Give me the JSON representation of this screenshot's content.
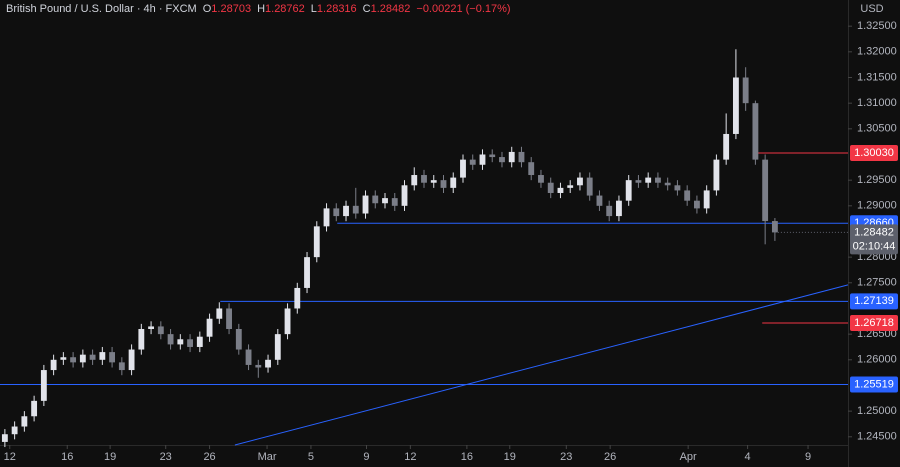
{
  "header": {
    "symbol": "British Pound / U.S. Dollar · 4h · FXCM",
    "ohlc_letters": [
      "O",
      "H",
      "L",
      "C"
    ],
    "change": "−0.00221 (−0.17%)",
    "currency": "USD"
  },
  "chart_data": {
    "type": "candlestick",
    "x": [
      0,
      1,
      2,
      3,
      4,
      5,
      6,
      7,
      8,
      9,
      10,
      11,
      12,
      13,
      14,
      15,
      16,
      17,
      18,
      19,
      20,
      21,
      22,
      23,
      24,
      25,
      26,
      27,
      28,
      29,
      30,
      31,
      32,
      33,
      34,
      35,
      36,
      37,
      38,
      39,
      40,
      41,
      42,
      43,
      44,
      45,
      46,
      47,
      48,
      49,
      50,
      51,
      52,
      53,
      54,
      55,
      56,
      57,
      58,
      59,
      60,
      61,
      62,
      63,
      64,
      65,
      66,
      67,
      68,
      69,
      70,
      71,
      72,
      73,
      74,
      75,
      76,
      77,
      78,
      79
    ],
    "open": [
      1.244,
      1.2455,
      1.247,
      1.249,
      1.252,
      1.258,
      1.26,
      1.2605,
      1.2595,
      1.261,
      1.26,
      1.2615,
      1.2595,
      1.258,
      1.262,
      1.266,
      1.2665,
      1.265,
      1.263,
      1.264,
      1.2625,
      1.2645,
      1.268,
      1.27,
      1.266,
      1.262,
      1.259,
      1.2585,
      1.26,
      1.265,
      1.27,
      1.274,
      1.28,
      1.286,
      1.2895,
      1.288,
      1.29,
      1.2885,
      1.292,
      1.2905,
      1.2915,
      1.29,
      1.294,
      1.296,
      1.2945,
      1.295,
      1.2935,
      1.2955,
      1.299,
      1.298,
      1.3,
      1.2995,
      1.2985,
      1.3005,
      1.2985,
      1.296,
      1.2945,
      1.2925,
      1.2935,
      1.294,
      1.2955,
      1.292,
      1.29,
      1.288,
      1.291,
      1.295,
      1.2945,
      1.2955,
      1.2945,
      1.294,
      1.293,
      1.291,
      1.2895,
      1.293,
      1.299,
      1.304,
      1.315,
      1.31,
      1.299,
      1.28703
    ],
    "high": [
      1.2465,
      1.248,
      1.25,
      1.253,
      1.259,
      1.261,
      1.2615,
      1.2615,
      1.262,
      1.262,
      1.2625,
      1.2625,
      1.2605,
      1.263,
      1.267,
      1.2675,
      1.2675,
      1.266,
      1.265,
      1.265,
      1.2655,
      1.269,
      1.2712,
      1.271,
      1.267,
      1.263,
      1.26,
      1.261,
      1.266,
      1.271,
      1.275,
      1.281,
      1.287,
      1.2905,
      1.2905,
      1.291,
      1.2935,
      1.293,
      1.293,
      1.2925,
      1.2925,
      1.295,
      1.2975,
      1.297,
      1.296,
      1.296,
      1.2965,
      1.3,
      1.3,
      1.301,
      1.301,
      1.3005,
      1.3015,
      1.3015,
      1.2995,
      1.297,
      1.2955,
      1.2945,
      1.295,
      1.2965,
      1.2965,
      1.293,
      1.291,
      1.292,
      1.296,
      1.296,
      1.2965,
      1.2965,
      1.2955,
      1.295,
      1.294,
      1.292,
      1.294,
      1.3,
      1.308,
      1.3205,
      1.317,
      1.3105,
      1.3,
      1.28762
    ],
    "low": [
      1.243,
      1.2445,
      1.246,
      1.248,
      1.251,
      1.257,
      1.259,
      1.2585,
      1.2585,
      1.259,
      1.259,
      1.2585,
      1.257,
      1.257,
      1.261,
      1.265,
      1.264,
      1.262,
      1.262,
      1.2615,
      1.2615,
      1.2635,
      1.267,
      1.265,
      1.261,
      1.258,
      1.2565,
      1.2575,
      1.259,
      1.264,
      1.269,
      1.273,
      1.279,
      1.285,
      1.287,
      1.287,
      1.2875,
      1.2875,
      1.2895,
      1.2895,
      1.289,
      1.289,
      1.293,
      1.2935,
      1.2935,
      1.2925,
      1.2925,
      1.2945,
      1.297,
      1.297,
      1.2985,
      1.2975,
      1.2975,
      1.2975,
      1.295,
      1.2935,
      1.2915,
      1.2915,
      1.2925,
      1.293,
      1.291,
      1.289,
      1.287,
      1.287,
      1.29,
      1.2935,
      1.2935,
      1.2935,
      1.293,
      1.292,
      1.29,
      1.2885,
      1.2885,
      1.292,
      1.298,
      1.303,
      1.3085,
      1.298,
      1.2825,
      1.28316
    ],
    "close": [
      1.2455,
      1.247,
      1.249,
      1.252,
      1.258,
      1.26,
      1.2605,
      1.2595,
      1.261,
      1.26,
      1.2615,
      1.2595,
      1.258,
      1.262,
      1.266,
      1.2665,
      1.265,
      1.263,
      1.264,
      1.2625,
      1.2645,
      1.268,
      1.27,
      1.266,
      1.262,
      1.259,
      1.2585,
      1.26,
      1.265,
      1.27,
      1.274,
      1.28,
      1.286,
      1.2895,
      1.288,
      1.29,
      1.2885,
      1.292,
      1.2905,
      1.2915,
      1.29,
      1.294,
      1.296,
      1.2945,
      1.295,
      1.2935,
      1.2955,
      1.299,
      1.298,
      1.3,
      1.2995,
      1.2985,
      1.3005,
      1.2985,
      1.296,
      1.2945,
      1.2925,
      1.2935,
      1.294,
      1.2955,
      1.292,
      1.29,
      1.288,
      1.291,
      1.295,
      1.2945,
      1.2955,
      1.2945,
      1.294,
      1.293,
      1.291,
      1.2895,
      1.293,
      1.299,
      1.304,
      1.315,
      1.31,
      1.299,
      1.28703,
      1.28482
    ],
    "up_color": "#e1e3ea",
    "down_color": "#7b7e88",
    "xlim": [
      -0.5,
      86.5
    ],
    "xticks": [
      {
        "value": 0.5,
        "label": "12"
      },
      {
        "value": 6.4,
        "label": "16"
      },
      {
        "value": 10.8,
        "label": "19"
      },
      {
        "value": 16.5,
        "label": "23"
      },
      {
        "value": 21,
        "label": "26"
      },
      {
        "value": 26.9,
        "label": "Mar"
      },
      {
        "value": 31.4,
        "label": "5"
      },
      {
        "value": 37.1,
        "label": "9"
      },
      {
        "value": 41.6,
        "label": "12"
      },
      {
        "value": 47.4,
        "label": "16"
      },
      {
        "value": 51.8,
        "label": "19"
      },
      {
        "value": 57.6,
        "label": "23"
      },
      {
        "value": 62.1,
        "label": "26"
      },
      {
        "value": 70.1,
        "label": "Apr"
      },
      {
        "value": 76.2,
        "label": "4"
      },
      {
        "value": 82.4,
        "label": "9"
      }
    ],
    "ylim": [
      1.2434,
      1.3301
    ],
    "yticks": [
      {
        "value": 1.245,
        "label": "1.24500"
      },
      {
        "value": 1.25,
        "label": "1.25000"
      },
      {
        "value": 1.26,
        "label": "1.26000"
      },
      {
        "value": 1.265,
        "label": "1.26500"
      },
      {
        "value": 1.275,
        "label": "1.27500"
      },
      {
        "value": 1.28,
        "label": "1.28000"
      },
      {
        "value": 1.29,
        "label": "1.29000"
      },
      {
        "value": 1.295,
        "label": "1.29500"
      },
      {
        "value": 1.305,
        "label": "1.30500"
      },
      {
        "value": 1.31,
        "label": "1.31000"
      },
      {
        "value": 1.315,
        "label": "1.31500"
      },
      {
        "value": 1.32,
        "label": "1.32000"
      },
      {
        "value": 1.325,
        "label": "1.32500"
      }
    ],
    "levels": [
      {
        "value": 1.3003,
        "label": "1.30030",
        "color": "#f23645",
        "start": 77.2
      },
      {
        "value": 1.2866,
        "label": "1.28660",
        "color": "#2962ff",
        "start": 34.1
      },
      {
        "value": 1.27139,
        "label": "1.27139",
        "color": "#2962ff",
        "start": 22.1
      },
      {
        "value": 1.26718,
        "label": "1.26718",
        "color": "#f23645",
        "start": 77.7
      },
      {
        "value": 1.25519,
        "label": "1.25519",
        "color": "#2962ff",
        "start": -0.5
      }
    ],
    "trendline": {
      "x": [
        23.6,
        86.5
      ],
      "y": [
        1.2434,
        1.2746
      ],
      "color": "#2962ff"
    },
    "countdown": "02:10:44",
    "price_badge_color": "#5d606b"
  }
}
